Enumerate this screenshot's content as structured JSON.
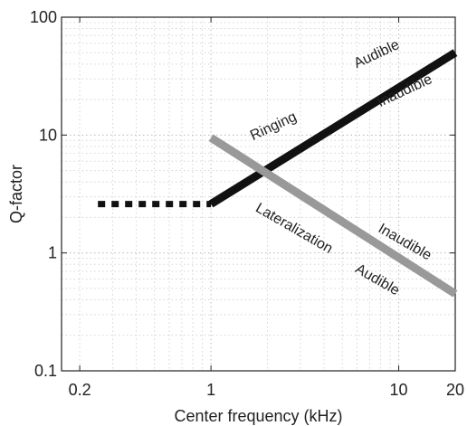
{
  "chart_data": {
    "type": "line",
    "xlabel": "Center frequency (kHz)",
    "ylabel": "Q-factor",
    "xscale": "log",
    "yscale": "log",
    "xlim": [
      0.16,
      20
    ],
    "ylim": [
      0.1,
      100
    ],
    "grid": true,
    "x_ticks": [
      {
        "value": 0.2,
        "label": "0.2"
      },
      {
        "value": 1,
        "label": "1"
      },
      {
        "value": 10,
        "label": "10"
      },
      {
        "value": 20,
        "label": "20"
      }
    ],
    "y_ticks": [
      {
        "value": 0.1,
        "label": "0.1"
      },
      {
        "value": 1,
        "label": "1"
      },
      {
        "value": 10,
        "label": "10"
      },
      {
        "value": 100,
        "label": "100"
      }
    ],
    "series": [
      {
        "key": "ringing-extension",
        "color": "#111111",
        "style": "dotted",
        "x": [
          0.25,
          1
        ],
        "y": [
          2.6,
          2.6
        ]
      },
      {
        "key": "ringing",
        "color": "#111111",
        "style": "solid",
        "x": [
          1,
          20
        ],
        "y": [
          2.6,
          50
        ]
      },
      {
        "key": "lateralization",
        "color": "#999999",
        "style": "solid",
        "x": [
          1,
          20
        ],
        "y": [
          9.5,
          0.45
        ]
      }
    ],
    "annotations": [
      {
        "text": "Ringing",
        "x": 2.2,
        "y": 11.0,
        "angle": -25
      },
      {
        "text": "Audible",
        "x": 7.8,
        "y": 45.0,
        "angle": -25
      },
      {
        "text": "Inaudible",
        "x": 11.0,
        "y": 22.0,
        "angle": -25
      },
      {
        "text": "Lateralization",
        "x": 2.7,
        "y": 1.5,
        "angle": 30
      },
      {
        "text": "Inaudible",
        "x": 10.5,
        "y": 1.15,
        "angle": 30
      },
      {
        "text": "Audible",
        "x": 7.5,
        "y": 0.55,
        "angle": 30
      }
    ]
  }
}
